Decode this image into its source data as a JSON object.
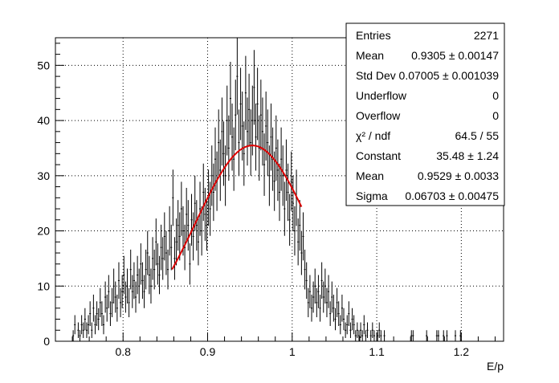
{
  "chart_data": {
    "type": "scatter",
    "xlabel": "E/p",
    "ylabel": "",
    "xlim": [
      0.72,
      1.25
    ],
    "ylim": [
      0,
      55
    ],
    "grid": true,
    "x_ticks": [
      {
        "value": 0.8,
        "label": "0.8"
      },
      {
        "value": 0.9,
        "label": "0.9"
      },
      {
        "value": 1.0,
        "label": "1"
      },
      {
        "value": 1.1,
        "label": "1.1"
      },
      {
        "value": 1.2,
        "label": "1.2"
      }
    ],
    "y_ticks": [
      {
        "value": 0,
        "label": "0"
      },
      {
        "value": 10,
        "label": "10"
      },
      {
        "value": 20,
        "label": "20"
      },
      {
        "value": 30,
        "label": "30"
      },
      {
        "value": 40,
        "label": "40"
      },
      {
        "value": 50,
        "label": "50"
      }
    ],
    "histogram": {
      "bin_width": 0.002,
      "points": [
        [
          0.741,
          1
        ],
        [
          0.743,
          3
        ],
        [
          0.745,
          0
        ],
        [
          0.747,
          2
        ],
        [
          0.749,
          1
        ],
        [
          0.751,
          3
        ],
        [
          0.753,
          2
        ],
        [
          0.755,
          4
        ],
        [
          0.757,
          2
        ],
        [
          0.759,
          3
        ],
        [
          0.761,
          5
        ],
        [
          0.763,
          2
        ],
        [
          0.765,
          6
        ],
        [
          0.767,
          3
        ],
        [
          0.769,
          5
        ],
        [
          0.771,
          4
        ],
        [
          0.773,
          7
        ],
        [
          0.775,
          5
        ],
        [
          0.777,
          3
        ],
        [
          0.779,
          8
        ],
        [
          0.781,
          6
        ],
        [
          0.783,
          9
        ],
        [
          0.785,
          5
        ],
        [
          0.787,
          7
        ],
        [
          0.789,
          10
        ],
        [
          0.791,
          8
        ],
        [
          0.793,
          6
        ],
        [
          0.795,
          11
        ],
        [
          0.797,
          7
        ],
        [
          0.799,
          9
        ],
        [
          0.801,
          12
        ],
        [
          0.803,
          8
        ],
        [
          0.805,
          10
        ],
        [
          0.807,
          7
        ],
        [
          0.809,
          13
        ],
        [
          0.811,
          9
        ],
        [
          0.813,
          11
        ],
        [
          0.815,
          8
        ],
        [
          0.817,
          12
        ],
        [
          0.819,
          10
        ],
        [
          0.821,
          14
        ],
        [
          0.823,
          11
        ],
        [
          0.825,
          9
        ],
        [
          0.827,
          13
        ],
        [
          0.829,
          16
        ],
        [
          0.831,
          12
        ],
        [
          0.833,
          10
        ],
        [
          0.835,
          15
        ],
        [
          0.837,
          13
        ],
        [
          0.839,
          18
        ],
        [
          0.841,
          14
        ],
        [
          0.843,
          12
        ],
        [
          0.845,
          17
        ],
        [
          0.847,
          15
        ],
        [
          0.849,
          19
        ],
        [
          0.851,
          16
        ],
        [
          0.853,
          13
        ],
        [
          0.855,
          20
        ],
        [
          0.857,
          17
        ],
        [
          0.859,
          26
        ],
        [
          0.861,
          15
        ],
        [
          0.863,
          18
        ],
        [
          0.865,
          21
        ],
        [
          0.867,
          19
        ],
        [
          0.869,
          24
        ],
        [
          0.871,
          20
        ],
        [
          0.873,
          17
        ],
        [
          0.875,
          23
        ],
        [
          0.877,
          21
        ],
        [
          0.879,
          14
        ],
        [
          0.881,
          22
        ],
        [
          0.883,
          19
        ],
        [
          0.885,
          25
        ],
        [
          0.887,
          21
        ],
        [
          0.889,
          18
        ],
        [
          0.891,
          24
        ],
        [
          0.893,
          20
        ],
        [
          0.895,
          27
        ],
        [
          0.897,
          23
        ],
        [
          0.899,
          21
        ],
        [
          0.901,
          26
        ],
        [
          0.903,
          24
        ],
        [
          0.905,
          30
        ],
        [
          0.907,
          27
        ],
        [
          0.909,
          33
        ],
        [
          0.911,
          29
        ],
        [
          0.913,
          36
        ],
        [
          0.915,
          31
        ],
        [
          0.917,
          38
        ],
        [
          0.919,
          34
        ],
        [
          0.921,
          30
        ],
        [
          0.923,
          40
        ],
        [
          0.925,
          35
        ],
        [
          0.927,
          44
        ],
        [
          0.929,
          37
        ],
        [
          0.931,
          33
        ],
        [
          0.933,
          41
        ],
        [
          0.935,
          48
        ],
        [
          0.937,
          36
        ],
        [
          0.939,
          43
        ],
        [
          0.941,
          39
        ],
        [
          0.943,
          34
        ],
        [
          0.945,
          45
        ],
        [
          0.947,
          38
        ],
        [
          0.949,
          42
        ],
        [
          0.951,
          36
        ],
        [
          0.953,
          40
        ],
        [
          0.955,
          46
        ],
        [
          0.957,
          37
        ],
        [
          0.959,
          43
        ],
        [
          0.961,
          35
        ],
        [
          0.963,
          41
        ],
        [
          0.965,
          38
        ],
        [
          0.967,
          32
        ],
        [
          0.969,
          39
        ],
        [
          0.971,
          36
        ],
        [
          0.973,
          30
        ],
        [
          0.975,
          37
        ],
        [
          0.977,
          33
        ],
        [
          0.979,
          29
        ],
        [
          0.981,
          35
        ],
        [
          0.983,
          31
        ],
        [
          0.985,
          27
        ],
        [
          0.987,
          33
        ],
        [
          0.989,
          30
        ],
        [
          0.991,
          24
        ],
        [
          0.993,
          31
        ],
        [
          0.995,
          27
        ],
        [
          0.997,
          22
        ],
        [
          0.999,
          29
        ],
        [
          1.001,
          25
        ],
        [
          1.003,
          20
        ],
        [
          1.005,
          26
        ],
        [
          1.007,
          18
        ],
        [
          1.009,
          21
        ],
        [
          1.011,
          16
        ],
        [
          1.013,
          19
        ],
        [
          1.015,
          13
        ],
        [
          1.017,
          11
        ],
        [
          1.019,
          7
        ],
        [
          1.021,
          9
        ],
        [
          1.023,
          6
        ],
        [
          1.025,
          8
        ],
        [
          1.027,
          10
        ],
        [
          1.029,
          7
        ],
        [
          1.031,
          9
        ],
        [
          1.033,
          6
        ],
        [
          1.035,
          11
        ],
        [
          1.037,
          8
        ],
        [
          1.039,
          10
        ],
        [
          1.041,
          7
        ],
        [
          1.043,
          9
        ],
        [
          1.045,
          5
        ],
        [
          1.047,
          8
        ],
        [
          1.049,
          6
        ],
        [
          1.051,
          4
        ],
        [
          1.053,
          7
        ],
        [
          1.055,
          5
        ],
        [
          1.057,
          3
        ],
        [
          1.059,
          6
        ],
        [
          1.061,
          4
        ],
        [
          1.063,
          2
        ],
        [
          1.065,
          3
        ],
        [
          1.067,
          5
        ],
        [
          1.069,
          2
        ],
        [
          1.071,
          4
        ],
        [
          1.073,
          3
        ],
        [
          1.075,
          1
        ],
        [
          1.077,
          2
        ],
        [
          1.079,
          1
        ],
        [
          1.081,
          2
        ],
        [
          1.083,
          1
        ],
        [
          1.085,
          3
        ],
        [
          1.087,
          1
        ],
        [
          1.089,
          2
        ],
        [
          1.091,
          0
        ],
        [
          1.093,
          1
        ],
        [
          1.095,
          2
        ],
        [
          1.097,
          1
        ],
        [
          1.099,
          0
        ],
        [
          1.101,
          1
        ],
        [
          1.103,
          2
        ],
        [
          1.105,
          1
        ],
        [
          1.107,
          0
        ],
        [
          1.109,
          1
        ],
        [
          1.141,
          1
        ],
        [
          1.143,
          1
        ],
        [
          1.159,
          1
        ],
        [
          1.171,
          1
        ],
        [
          1.173,
          1
        ],
        [
          1.179,
          1
        ],
        [
          1.183,
          1
        ],
        [
          1.193,
          1
        ],
        [
          1.199,
          1
        ]
      ]
    },
    "fit": {
      "function": "gaus",
      "constant": 35.48,
      "mean": 0.9529,
      "sigma": 0.06703,
      "range": [
        0.858,
        1.011
      ],
      "color": "#dd0000"
    },
    "stats_box": {
      "rows": [
        {
          "label": "Entries",
          "value": "2271"
        },
        {
          "label": "Mean",
          "value": "0.9305 ± 0.00147"
        },
        {
          "label": "Std Dev",
          "value": "0.07005 ± 0.001039"
        },
        {
          "label": "Underflow",
          "value": "0"
        },
        {
          "label": "Overflow",
          "value": "0"
        },
        {
          "label": "χ² / ndf",
          "value": "64.5 / 55"
        },
        {
          "label": "Constant",
          "value": "35.48 ± 1.24"
        },
        {
          "label": "Mean",
          "value": "0.9529 ± 0.0033"
        },
        {
          "label": "Sigma",
          "value": "0.06703 ± 0.00475"
        }
      ]
    }
  }
}
